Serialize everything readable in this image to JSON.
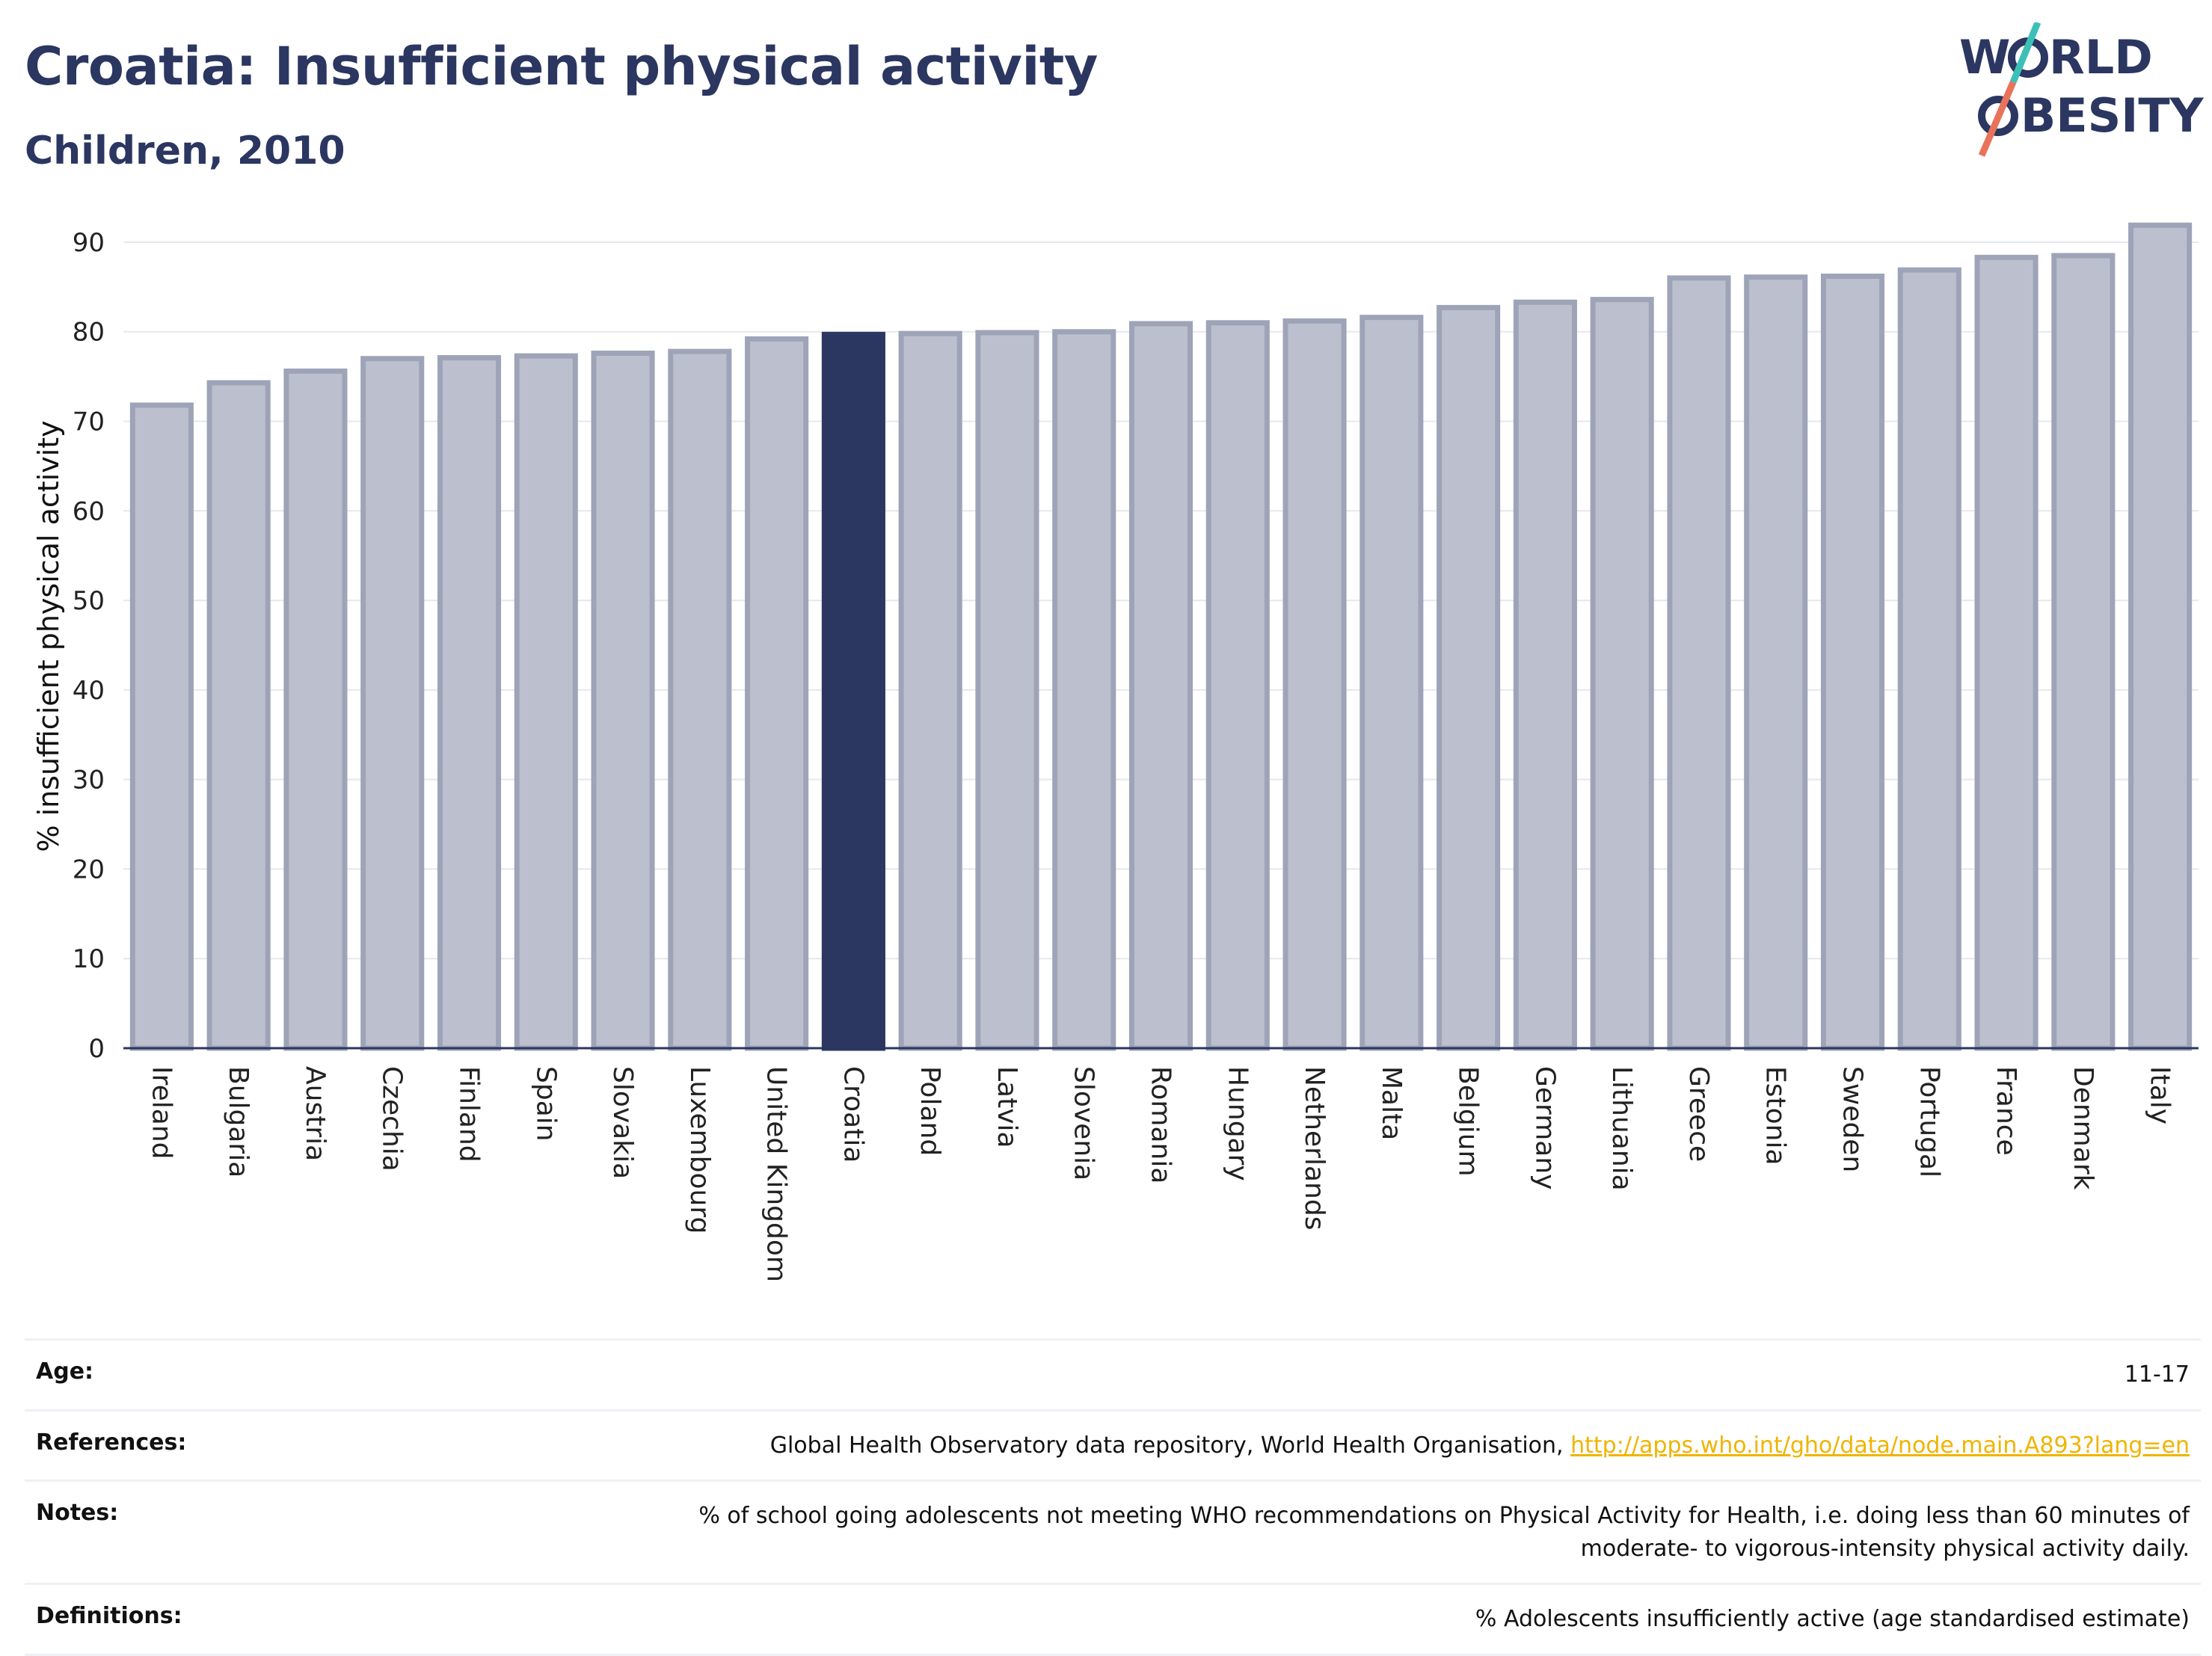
{
  "header": {
    "title": "Croatia: Insufficient physical activity",
    "subtitle": "Children, 2010"
  },
  "logo": {
    "line1": "WORLD",
    "line2": "OBESITY",
    "colors": {
      "text": "#2b3661",
      "slash_teal": "#3cbfb6",
      "slash_red": "#e8735a"
    }
  },
  "chart_data": {
    "type": "bar",
    "ylabel": "% insufficient physical activity",
    "ylim": [
      0,
      92
    ],
    "yticks": [
      0,
      10,
      20,
      30,
      40,
      50,
      60,
      70,
      80,
      90
    ],
    "grid": true,
    "highlight": "Croatia",
    "colors": {
      "bar": "#bcc0ce",
      "bar_stroke": "#9ea4b8",
      "highlight": "#2b3661"
    },
    "categories": [
      "Ireland",
      "Bulgaria",
      "Austria",
      "Czechia",
      "Finland",
      "Spain",
      "Slovakia",
      "Luxembourg",
      "United Kingdom",
      "Croatia",
      "Poland",
      "Latvia",
      "Slovenia",
      "Romania",
      "Hungary",
      "Netherlands",
      "Malta",
      "Belgium",
      "Germany",
      "Lithuania",
      "Greece",
      "Estonia",
      "Sweden",
      "Portugal",
      "France",
      "Denmark",
      "Italy"
    ],
    "values": [
      71.8,
      74.3,
      75.6,
      77.0,
      77.1,
      77.3,
      77.6,
      77.8,
      79.2,
      79.7,
      79.8,
      79.9,
      80.0,
      80.9,
      81.0,
      81.2,
      81.6,
      82.7,
      83.3,
      83.6,
      86.0,
      86.1,
      86.2,
      86.9,
      88.3,
      88.5,
      91.9
    ]
  },
  "meta": {
    "age": {
      "label": "Age:",
      "value": "11-17"
    },
    "references": {
      "label": "References:",
      "text": "Global Health Observatory data repository, World Health Organisation,",
      "link": "http://apps.who.int/gho/data/node.main.A893?lang=en"
    },
    "notes": {
      "label": "Notes:",
      "line1": "% of school going adolescents not meeting WHO recommendations on Physical Activity for Health, i.e. doing less than 60 minutes of",
      "line2": "moderate- to vigorous-intensity physical activity daily."
    },
    "definitions": {
      "label": "Definitions:",
      "value": "% Adolescents insufficiently active (age standardised estimate)"
    }
  }
}
